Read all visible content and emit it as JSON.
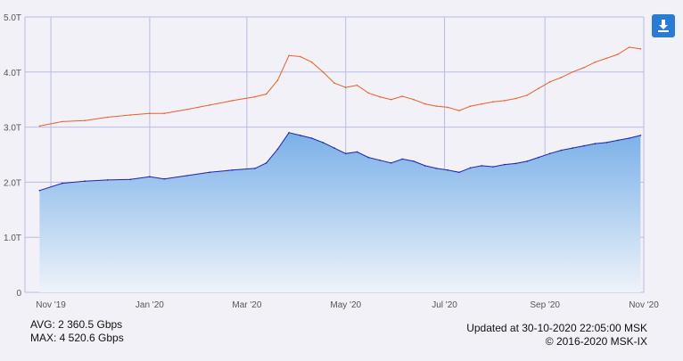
{
  "chart_data": {
    "type": "area",
    "y_ticks": [
      "0",
      "1.0T",
      "2.0T",
      "3.0T",
      "4.0T",
      "5.0T"
    ],
    "ylim": [
      0,
      5
    ],
    "x_ticks": [
      "Nov '19",
      "Jan '20",
      "Mar '20",
      "May '20",
      "Jul '20",
      "Sep '20",
      "Nov '20"
    ],
    "x": [
      "2019-10-25",
      "2019-11-08",
      "2019-11-22",
      "2019-12-06",
      "2019-12-20",
      "2020-01-01",
      "2020-01-10",
      "2020-01-24",
      "2020-02-07",
      "2020-02-21",
      "2020-03-06",
      "2020-03-13",
      "2020-03-20",
      "2020-03-27",
      "2020-04-03",
      "2020-04-10",
      "2020-04-17",
      "2020-04-24",
      "2020-05-01",
      "2020-05-08",
      "2020-05-15",
      "2020-05-22",
      "2020-05-29",
      "2020-06-05",
      "2020-06-12",
      "2020-06-19",
      "2020-06-26",
      "2020-07-03",
      "2020-07-10",
      "2020-07-17",
      "2020-07-24",
      "2020-07-31",
      "2020-08-07",
      "2020-08-14",
      "2020-08-21",
      "2020-08-28",
      "2020-09-04",
      "2020-09-11",
      "2020-09-18",
      "2020-09-25",
      "2020-10-02",
      "2020-10-09",
      "2020-10-16",
      "2020-10-23",
      "2020-10-30"
    ],
    "series": [
      {
        "color": "#2222aa",
        "fill_top": "#7ab0e8",
        "fill_bottom": "#e8eef8",
        "values": [
          1.85,
          1.98,
          2.02,
          2.04,
          2.05,
          2.1,
          2.06,
          2.12,
          2.18,
          2.22,
          2.25,
          2.35,
          2.6,
          2.9,
          2.85,
          2.8,
          2.72,
          2.62,
          2.52,
          2.55,
          2.45,
          2.4,
          2.35,
          2.42,
          2.38,
          2.3,
          2.25,
          2.22,
          2.18,
          2.26,
          2.3,
          2.28,
          2.32,
          2.34,
          2.38,
          2.45,
          2.52,
          2.58,
          2.62,
          2.66,
          2.7,
          2.72,
          2.76,
          2.8,
          2.85
        ]
      },
      {
        "color": "#e8602c",
        "values": [
          3.02,
          3.1,
          3.12,
          3.18,
          3.22,
          3.25,
          3.25,
          3.32,
          3.4,
          3.48,
          3.55,
          3.6,
          3.85,
          4.3,
          4.28,
          4.18,
          4.0,
          3.8,
          3.72,
          3.76,
          3.62,
          3.55,
          3.5,
          3.56,
          3.5,
          3.42,
          3.38,
          3.36,
          3.3,
          3.38,
          3.42,
          3.46,
          3.48,
          3.52,
          3.58,
          3.7,
          3.82,
          3.9,
          4.0,
          4.08,
          4.18,
          4.25,
          4.32,
          4.45,
          4.42
        ]
      }
    ]
  },
  "stats": {
    "avg": "AVG: 2 360.5 Gbps",
    "max": "MAX: 4 520.6 Gbps"
  },
  "footer": {
    "updated": "Updated at 30-10-2020 22:05:00 MSK",
    "copyright": "© 2016-2020 MSK-IX"
  },
  "toolbar": {
    "download_icon": "download-icon",
    "button_color": "#2a7bd4"
  }
}
